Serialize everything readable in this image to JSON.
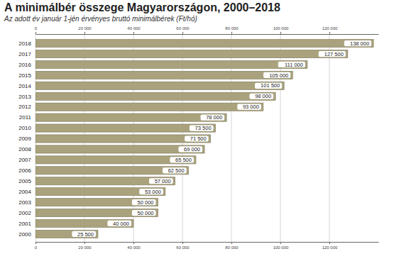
{
  "chart_data": {
    "type": "bar",
    "orientation": "horizontal",
    "title": "A minimálbér összege Magyarországon, 2000–2018",
    "subtitle": "Az adott év január 1-jén érvényes bruttó minimálbérek (Ft/hó)",
    "categories": [
      "2018",
      "2017",
      "2016",
      "2015",
      "2014",
      "2013",
      "2012",
      "2011",
      "2010",
      "2009",
      "2008",
      "2007",
      "2006",
      "2005",
      "2004",
      "2003",
      "2002",
      "2001",
      "2000"
    ],
    "values": [
      138000,
      127500,
      111000,
      105000,
      101500,
      98000,
      93000,
      78000,
      73500,
      71500,
      69000,
      65500,
      62500,
      57000,
      53000,
      50000,
      50000,
      40000,
      25500
    ],
    "value_labels": [
      "138 000",
      "127 500",
      "111 000",
      "105 000",
      "101 500",
      "98 000",
      "93 000",
      "78 000",
      "73 500",
      "71 500",
      "69 000",
      "65 500",
      "62 500",
      "57 000",
      "53 000",
      "50 000",
      "50 000",
      "40 000",
      "25 500"
    ],
    "color": "#a9a27d",
    "data_labels": true,
    "grid": true,
    "xlim": [
      0,
      140000
    ],
    "xticks": [
      0,
      {
        "value": 20000,
        "label": "20 000"
      },
      {
        "value": 40000,
        "label": "40 000"
      },
      {
        "value": 60000,
        "label": "60 000"
      },
      {
        "value": 80000,
        "label": "80 000"
      },
      {
        "value": 100000,
        "label": "100 000"
      },
      {
        "value": 120000,
        "label": "120 000"
      }
    ]
  }
}
